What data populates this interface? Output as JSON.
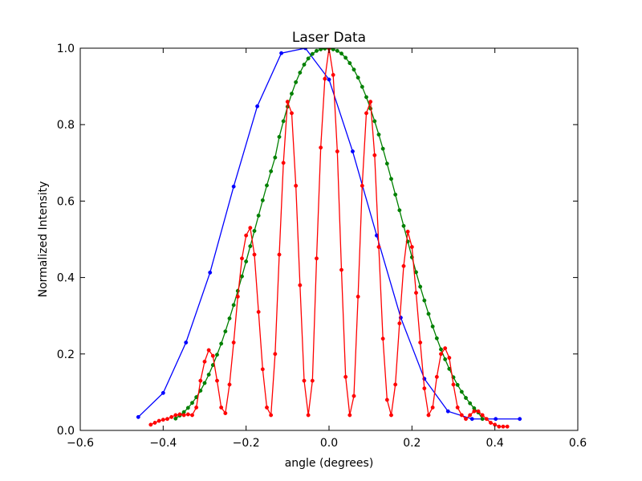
{
  "chart_data": {
    "type": "line",
    "title": "Laser Data",
    "xlabel": "angle (degrees)",
    "ylabel": "Normalized Intensity",
    "xlim": [
      -0.6,
      0.6
    ],
    "ylim": [
      0.0,
      1.0
    ],
    "xticks": [
      -0.6,
      -0.4,
      -0.2,
      0.0,
      0.2,
      0.4,
      0.6
    ],
    "yticks": [
      0.0,
      0.2,
      0.4,
      0.6,
      0.8,
      1.0
    ],
    "xtick_labels": [
      "−0.6",
      "−0.4",
      "−0.2",
      "0.0",
      "0.2",
      "0.4",
      "0.6"
    ],
    "ytick_labels": [
      "0.0",
      "0.2",
      "0.4",
      "0.6",
      "0.8",
      "1.0"
    ],
    "grid": false,
    "legend": "none",
    "series": [
      {
        "color": "#0000ff",
        "marker": "dot",
        "x": [
          -0.46,
          -0.4,
          -0.345,
          -0.287,
          -0.23,
          -0.173,
          -0.115,
          -0.057,
          0.0,
          0.057,
          0.115,
          0.173,
          0.23,
          0.287,
          0.345,
          0.402,
          0.46
        ],
        "y": [
          0.035,
          0.098,
          0.23,
          0.413,
          0.638,
          0.848,
          0.987,
          1.0,
          0.918,
          0.73,
          0.51,
          0.295,
          0.135,
          0.05,
          0.03,
          0.03,
          0.03
        ]
      },
      {
        "color": "#008000",
        "marker": "dot",
        "x": [
          -0.37,
          -0.36,
          -0.35,
          -0.34,
          -0.33,
          -0.32,
          -0.31,
          -0.3,
          -0.29,
          -0.28,
          -0.27,
          -0.26,
          -0.25,
          -0.24,
          -0.23,
          -0.22,
          -0.21,
          -0.2,
          -0.19,
          -0.18,
          -0.17,
          -0.16,
          -0.15,
          -0.14,
          -0.13,
          -0.12,
          -0.11,
          -0.1,
          -0.09,
          -0.08,
          -0.07,
          -0.06,
          -0.05,
          -0.04,
          -0.03,
          -0.02,
          -0.01,
          0.0,
          0.01,
          0.02,
          0.03,
          0.04,
          0.05,
          0.06,
          0.07,
          0.08,
          0.09,
          0.1,
          0.11,
          0.12,
          0.13,
          0.14,
          0.15,
          0.16,
          0.17,
          0.18,
          0.19,
          0.2,
          0.21,
          0.22,
          0.23,
          0.24,
          0.25,
          0.26,
          0.27,
          0.28,
          0.29,
          0.3,
          0.31,
          0.32,
          0.33,
          0.34,
          0.35,
          0.36,
          0.37
        ],
        "y": [
          0.031,
          0.039,
          0.048,
          0.059,
          0.072,
          0.087,
          0.104,
          0.124,
          0.146,
          0.171,
          0.198,
          0.227,
          0.259,
          0.293,
          0.328,
          0.365,
          0.403,
          0.442,
          0.482,
          0.522,
          0.562,
          0.602,
          0.641,
          0.678,
          0.714,
          0.768,
          0.809,
          0.847,
          0.881,
          0.911,
          0.936,
          0.957,
          0.973,
          0.985,
          0.993,
          0.997,
          0.999,
          0.999,
          0.997,
          0.993,
          0.986,
          0.975,
          0.961,
          0.944,
          0.923,
          0.899,
          0.872,
          0.842,
          0.809,
          0.774,
          0.737,
          0.698,
          0.658,
          0.617,
          0.576,
          0.535,
          0.494,
          0.453,
          0.414,
          0.376,
          0.34,
          0.305,
          0.272,
          0.241,
          0.212,
          0.186,
          0.161,
          0.139,
          0.119,
          0.101,
          0.085,
          0.071,
          0.058,
          0.047,
          0.03
        ]
      },
      {
        "color": "#ff0000",
        "marker": "dot",
        "x": [
          -0.43,
          -0.42,
          -0.41,
          -0.4,
          -0.39,
          -0.38,
          -0.37,
          -0.36,
          -0.35,
          -0.34,
          -0.33,
          -0.32,
          -0.31,
          -0.3,
          -0.29,
          -0.28,
          -0.27,
          -0.26,
          -0.25,
          -0.24,
          -0.23,
          -0.22,
          -0.21,
          -0.2,
          -0.19,
          -0.18,
          -0.17,
          -0.16,
          -0.15,
          -0.14,
          -0.13,
          -0.12,
          -0.11,
          -0.1,
          -0.09,
          -0.08,
          -0.07,
          -0.06,
          -0.05,
          -0.04,
          -0.03,
          -0.02,
          -0.01,
          0.0,
          0.01,
          0.02,
          0.03,
          0.04,
          0.05,
          0.06,
          0.07,
          0.08,
          0.09,
          0.1,
          0.11,
          0.12,
          0.13,
          0.14,
          0.15,
          0.16,
          0.17,
          0.18,
          0.19,
          0.2,
          0.21,
          0.22,
          0.23,
          0.24,
          0.25,
          0.26,
          0.27,
          0.28,
          0.29,
          0.3,
          0.31,
          0.32,
          0.33,
          0.34,
          0.35,
          0.36,
          0.37,
          0.38,
          0.39,
          0.4,
          0.41,
          0.42,
          0.43
        ],
        "y": [
          0.015,
          0.02,
          0.025,
          0.028,
          0.03,
          0.035,
          0.04,
          0.042,
          0.04,
          0.042,
          0.04,
          0.06,
          0.13,
          0.18,
          0.21,
          0.195,
          0.13,
          0.06,
          0.045,
          0.12,
          0.23,
          0.35,
          0.45,
          0.51,
          0.53,
          0.46,
          0.31,
          0.16,
          0.06,
          0.04,
          0.2,
          0.46,
          0.7,
          0.86,
          0.83,
          0.64,
          0.38,
          0.13,
          0.04,
          0.13,
          0.45,
          0.74,
          0.92,
          1.0,
          0.93,
          0.73,
          0.42,
          0.14,
          0.04,
          0.09,
          0.35,
          0.64,
          0.83,
          0.86,
          0.72,
          0.48,
          0.24,
          0.08,
          0.04,
          0.12,
          0.28,
          0.43,
          0.52,
          0.48,
          0.36,
          0.23,
          0.11,
          0.04,
          0.06,
          0.14,
          0.2,
          0.215,
          0.19,
          0.12,
          0.06,
          0.04,
          0.03,
          0.04,
          0.05,
          0.05,
          0.04,
          0.03,
          0.02,
          0.015,
          0.01,
          0.01,
          0.01
        ]
      }
    ]
  }
}
